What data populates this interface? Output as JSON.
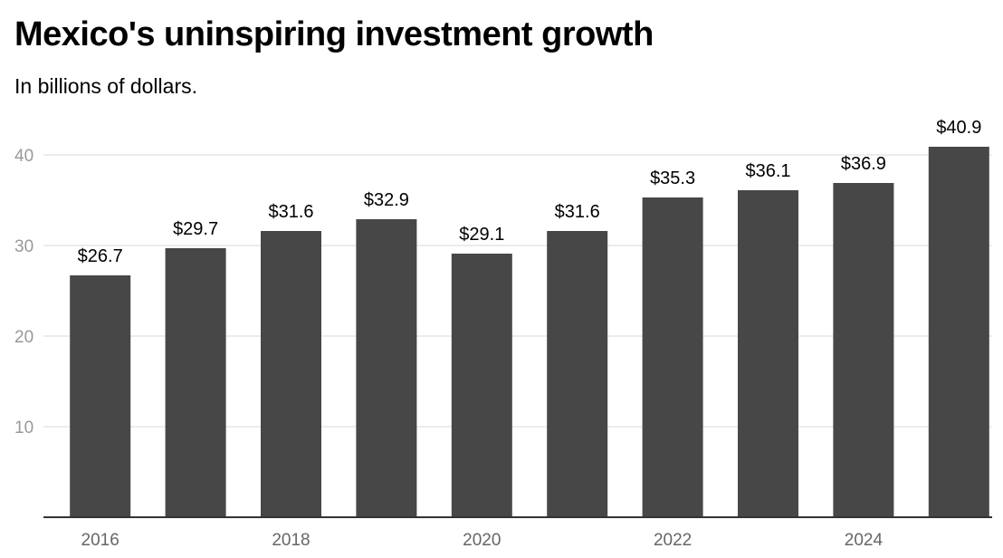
{
  "chart_data": {
    "type": "bar",
    "title": "Mexico's uninspiring investment growth",
    "subtitle": "In billions of dollars.",
    "categories": [
      "2016",
      "2017",
      "2018",
      "2019",
      "2020",
      "2021",
      "2022",
      "2023",
      "2024",
      "2025"
    ],
    "values": [
      26.7,
      29.7,
      31.6,
      32.9,
      29.1,
      31.6,
      35.3,
      36.1,
      36.9,
      40.9
    ],
    "data_labels": [
      "$26.7",
      "$29.7",
      "$31.6",
      "$32.9",
      "$29.1",
      "$31.6",
      "$35.3",
      "$36.1",
      "$36.9",
      "$40.9"
    ],
    "x_tick_labels": [
      "2016",
      "2018",
      "2020",
      "2022",
      "2024"
    ],
    "y_ticks": [
      10,
      20,
      30,
      40
    ],
    "ylim": [
      0,
      45
    ],
    "xlabel": "",
    "ylabel": "",
    "grid": true,
    "legend": "none",
    "bar_color": "#474747",
    "grid_color": "#e5e5e5",
    "axis_color": "#333333"
  }
}
